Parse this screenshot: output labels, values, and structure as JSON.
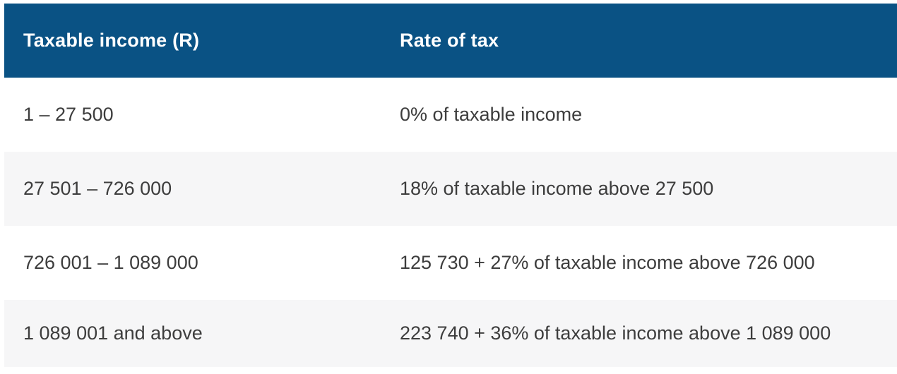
{
  "table": {
    "columns": [
      {
        "label": "Taxable income (R)"
      },
      {
        "label": "Rate of tax"
      }
    ],
    "rows": [
      {
        "income": "1 – 27 500",
        "rate": "0% of taxable income"
      },
      {
        "income": "27 501 – 726 000",
        "rate": "18% of taxable income above 27 500"
      },
      {
        "income": "726 001 – 1 089 000",
        "rate": "125 730 + 27% of taxable income above 726 000"
      },
      {
        "income": "1 089 001 and above",
        "rate": "223 740 + 36% of taxable income above 1 089 000"
      }
    ]
  },
  "colors": {
    "header_bg": "#0a5284",
    "header_text": "#ffffff",
    "body_text": "#3d3d3d",
    "row_white_bg": "#ffffff",
    "row_alt_bg": "#f6f6f7"
  }
}
